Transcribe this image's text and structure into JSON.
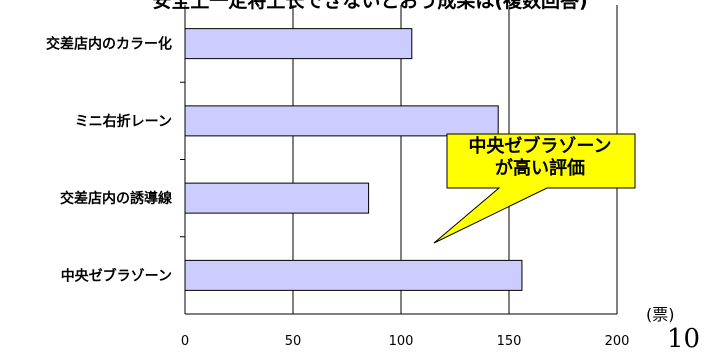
{
  "title": "安全上一定将上长できないとおう成果は(複数回答)",
  "unit": "(票)",
  "page_number": "10",
  "callout": {
    "line1": "中央ゼブラゾーン",
    "line2": "が高い評価",
    "fill": "#ffff00"
  },
  "chart_data": {
    "type": "bar",
    "orientation": "horizontal",
    "categories": [
      "交差店内のカラー化",
      "ミニ右折レーン",
      "交差店内の誘導線",
      "中央ゼブラゾーン"
    ],
    "values": [
      105,
      145,
      85,
      156
    ],
    "xlim": [
      0,
      200
    ],
    "xticks": [
      "0",
      "50",
      "100",
      "150",
      "200"
    ],
    "grid": true,
    "bar_color": "#ccccff"
  }
}
